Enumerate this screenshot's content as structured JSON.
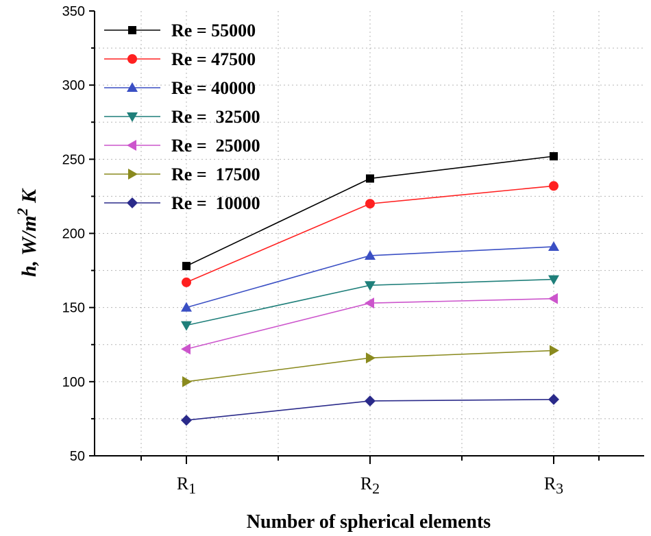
{
  "chart_data": {
    "type": "line",
    "title": "",
    "xlabel": "Number of spherical elements",
    "ylabel": {
      "main": "h, W/m",
      "superscript": "2",
      "tail": " K"
    },
    "categories": [
      {
        "base": "R",
        "sub": "1"
      },
      {
        "base": "R",
        "sub": "2"
      },
      {
        "base": "R",
        "sub": "3"
      }
    ],
    "ylim": [
      50,
      350
    ],
    "yticks": [
      50,
      100,
      150,
      200,
      250,
      300,
      350
    ],
    "grid": true,
    "legend_position": "top-left",
    "series": [
      {
        "name": "Re = 55000",
        "color": "#000000",
        "marker": "square",
        "values": [
          178,
          237,
          252
        ]
      },
      {
        "name": "Re = 47500",
        "color": "#ff2020",
        "marker": "circle",
        "values": [
          167,
          220,
          232
        ]
      },
      {
        "name": "Re = 40000",
        "color": "#3a4fc4",
        "marker": "triangle-up",
        "values": [
          150,
          185,
          191
        ]
      },
      {
        "name": "Re =  32500",
        "color": "#1f7f7a",
        "marker": "triangle-down",
        "values": [
          138,
          165,
          169
        ]
      },
      {
        "name": "Re =  25000",
        "color": "#cc55cc",
        "marker": "triangle-left",
        "values": [
          122,
          153,
          156
        ]
      },
      {
        "name": "Re =  17500",
        "color": "#8a8a1e",
        "marker": "triangle-right",
        "values": [
          100,
          116,
          121
        ]
      },
      {
        "name": "Re =  10000",
        "color": "#2a2a8a",
        "marker": "diamond",
        "values": [
          74,
          87,
          88
        ]
      }
    ]
  }
}
